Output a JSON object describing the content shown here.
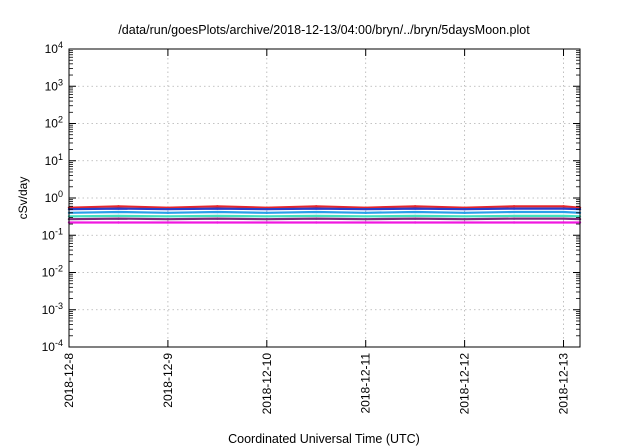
{
  "chart_data": {
    "type": "line",
    "title": "/data/run/goesPlots/archive/2018-12-13/04:00/bryn/../bryn/5daysMoon.plot",
    "xlabel": "Coordinated Universal Time (UTC)",
    "ylabel": "cSv/day",
    "yscale": "log",
    "ylim": [
      0.0001,
      10000
    ],
    "yticks": [
      {
        "value": 0.0001,
        "base": "10",
        "exp": "-4"
      },
      {
        "value": 0.001,
        "base": "10",
        "exp": "-3"
      },
      {
        "value": 0.01,
        "base": "10",
        "exp": "-2"
      },
      {
        "value": 0.1,
        "base": "10",
        "exp": "-1"
      },
      {
        "value": 1,
        "base": "10",
        "exp": "0"
      },
      {
        "value": 10,
        "base": "10",
        "exp": "1"
      },
      {
        "value": 100,
        "base": "10",
        "exp": "2"
      },
      {
        "value": 1000,
        "base": "10",
        "exp": "3"
      },
      {
        "value": 10000,
        "base": "10",
        "exp": "4"
      }
    ],
    "xlim": [
      "2018-12-08T00:00",
      "2018-12-13T04:00"
    ],
    "xticks": [
      "2018-12-8",
      "2018-12-9",
      "2018-12-10",
      "2018-12-11",
      "2018-12-12",
      "2018-12-13"
    ],
    "grid": true,
    "x": [
      "2018-12-08T00:00",
      "2018-12-08T12:00",
      "2018-12-09T00:00",
      "2018-12-09T12:00",
      "2018-12-10T00:00",
      "2018-12-10T12:00",
      "2018-12-11T00:00",
      "2018-12-11T12:00",
      "2018-12-12T00:00",
      "2018-12-12T12:00",
      "2018-12-13T00:00",
      "2018-12-13T04:00"
    ],
    "series": [
      {
        "color": "#e4262d",
        "values": [
          0.55,
          0.6,
          0.55,
          0.6,
          0.55,
          0.6,
          0.55,
          0.6,
          0.55,
          0.6,
          0.6,
          0.55
        ]
      },
      {
        "color": "#2a3cc8",
        "values": [
          0.5,
          0.52,
          0.5,
          0.52,
          0.5,
          0.52,
          0.5,
          0.52,
          0.5,
          0.52,
          0.52,
          0.5
        ]
      },
      {
        "color": "#2aa0e8",
        "values": [
          0.4,
          0.42,
          0.4,
          0.42,
          0.4,
          0.42,
          0.4,
          0.42,
          0.4,
          0.42,
          0.42,
          0.4
        ]
      },
      {
        "color": "#40e0c0",
        "values": [
          0.32,
          0.33,
          0.32,
          0.33,
          0.32,
          0.33,
          0.32,
          0.33,
          0.32,
          0.33,
          0.33,
          0.32
        ]
      },
      {
        "color": "#7a2a7a",
        "values": [
          0.27,
          0.28,
          0.27,
          0.28,
          0.27,
          0.28,
          0.27,
          0.28,
          0.27,
          0.28,
          0.28,
          0.27
        ]
      },
      {
        "color": "#f018e0",
        "values": [
          0.22,
          0.22,
          0.22,
          0.22,
          0.22,
          0.22,
          0.22,
          0.22,
          0.22,
          0.22,
          0.22,
          0.22
        ]
      }
    ]
  }
}
